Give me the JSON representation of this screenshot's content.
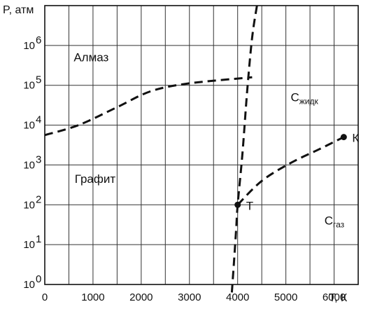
{
  "chart_data": {
    "type": "line",
    "title": "",
    "xlabel": "T, К",
    "ylabel": "P, атм",
    "xlim": [
      0,
      6500
    ],
    "ylim_log10": [
      0,
      7
    ],
    "y_scale": "log",
    "grid": true,
    "x_ticks": [
      {
        "value": 0,
        "label": "0"
      },
      {
        "value": 1000,
        "label": "1000"
      },
      {
        "value": 2000,
        "label": "2000"
      },
      {
        "value": 3000,
        "label": "3000"
      },
      {
        "value": 4000,
        "label": "4000"
      },
      {
        "value": 5000,
        "label": "5000"
      },
      {
        "value": 6000,
        "label": "6000"
      }
    ],
    "y_ticks": [
      {
        "exp": 0,
        "base": "10",
        "sup": "0"
      },
      {
        "exp": 1,
        "base": "10",
        "sup": "1"
      },
      {
        "exp": 2,
        "base": "10",
        "sup": "2"
      },
      {
        "exp": 3,
        "base": "10",
        "sup": "3"
      },
      {
        "exp": 4,
        "base": "10",
        "sup": "4"
      },
      {
        "exp": 5,
        "base": "10",
        "sup": "5"
      },
      {
        "exp": 6,
        "base": "10",
        "sup": "6"
      }
    ],
    "series": [
      {
        "points": [
          [
            0,
            3.75
          ],
          [
            700,
            4.0
          ],
          [
            1500,
            4.45
          ],
          [
            2200,
            4.85
          ],
          [
            3000,
            5.05
          ],
          [
            4300,
            5.2
          ]
        ]
      },
      {
        "points": [
          [
            3880,
            -0.2
          ],
          [
            3920,
            0.5
          ],
          [
            3970,
            1.4
          ],
          [
            4000,
            2.0
          ],
          [
            4100,
            3.3
          ],
          [
            4200,
            4.9
          ],
          [
            4300,
            6.2
          ],
          [
            4400,
            7.0
          ]
        ]
      },
      {
        "points": [
          [
            4000,
            2.0
          ],
          [
            4500,
            2.6
          ],
          [
            5100,
            3.05
          ],
          [
            5700,
            3.4
          ],
          [
            6200,
            3.7
          ]
        ]
      }
    ],
    "markers": [
      {
        "x": 4000,
        "y": 2.0,
        "label": "Т"
      },
      {
        "x": 6200,
        "y": 3.7,
        "label": "К"
      }
    ],
    "regions": [
      {
        "label": "Алмаз",
        "x": 600,
        "y": 5.6
      },
      {
        "label": "Графит",
        "x": 620,
        "y": 2.55
      },
      {
        "label": "C",
        "sub": "жидк",
        "x": 5100,
        "y": 4.6
      },
      {
        "label": "C",
        "sub": "газ",
        "x": 5800,
        "y": 1.5
      }
    ]
  }
}
